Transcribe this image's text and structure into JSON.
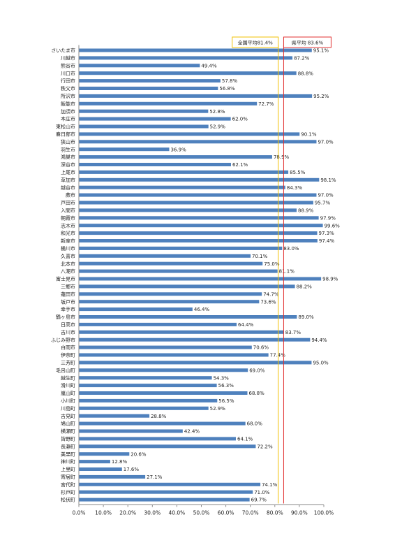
{
  "chart_data": {
    "type": "bar",
    "orientation": "horizontal",
    "unit": "%",
    "xlim": [
      0,
      100
    ],
    "x_ticks": [
      "0.0%",
      "10.0%",
      "20.0%",
      "30.0%",
      "40.0%",
      "50.0%",
      "60.0%",
      "70.0%",
      "80.0%",
      "90.0%",
      "100.0%"
    ],
    "grid": false,
    "colors": {
      "bar": "#4f81bd",
      "national_line": "#f2c100",
      "prefecture_line": "#e03030",
      "axis": "#888888"
    },
    "reference_lines": [
      {
        "label": "全国平均81.4%",
        "value": 81.4,
        "color": "#f2c100"
      },
      {
        "label": "県平均 83.6%",
        "value": 83.6,
        "color": "#e03030"
      }
    ],
    "categories": [
      "さいたま市",
      "川越市",
      "熊谷市",
      "川口市",
      "行田市",
      "秩父市",
      "所沢市",
      "飯能市",
      "加須市",
      "本庄市",
      "東松山市",
      "春日部市",
      "狭山市",
      "羽生市",
      "鴻巣市",
      "深谷市",
      "上尾市",
      "草加市",
      "越谷市",
      "蕨市",
      "戸田市",
      "入間市",
      "朝霞市",
      "志木市",
      "和光市",
      "新座市",
      "桶川市",
      "久喜市",
      "北本市",
      "八潮市",
      "富士見市",
      "三郷市",
      "蓮田市",
      "坂戸市",
      "幸手市",
      "鶴ヶ島市",
      "日高市",
      "吉川市",
      "ふじみ野市",
      "白岡市",
      "伊奈町",
      "三芳町",
      "毛呂山町",
      "越生町",
      "滑川町",
      "嵐山町",
      "小川町",
      "川島町",
      "吉見町",
      "鳩山町",
      "横瀬町",
      "皆野町",
      "長瀞町",
      "美里町",
      "神川町",
      "上里町",
      "寄居町",
      "宮代町",
      "杉戸町",
      "松伏町"
    ],
    "values": [
      95.1,
      87.2,
      49.4,
      88.8,
      57.8,
      56.8,
      95.2,
      72.7,
      52.8,
      62.0,
      52.9,
      90.1,
      97.0,
      36.9,
      78.9,
      62.1,
      85.5,
      98.1,
      84.3,
      97.0,
      95.7,
      88.9,
      97.9,
      99.6,
      97.3,
      97.4,
      83.0,
      70.1,
      75.0,
      81.1,
      98.9,
      88.2,
      74.7,
      73.6,
      46.4,
      89.0,
      64.4,
      83.7,
      94.4,
      70.6,
      77.4,
      95.0,
      69.0,
      54.3,
      56.3,
      68.8,
      56.5,
      52.9,
      28.8,
      68.0,
      42.4,
      64.1,
      72.2,
      20.6,
      12.8,
      17.6,
      27.1,
      74.1,
      71.0,
      69.7
    ],
    "value_labels": [
      "95.1%",
      "87.2%",
      "49.4%",
      "88.8%",
      "57.8%",
      "56.8%",
      "95.2%",
      "72.7%",
      "52.8%",
      "62.0%",
      "52.9%",
      "90.1%",
      "97.0%",
      "36.9%",
      "78.9%",
      "62.1%",
      "85.5%",
      "98.1%",
      "84.3%",
      "97.0%",
      "95.7%",
      "88.9%",
      "97.9%",
      "99.6%",
      "97.3%",
      "97.4%",
      "83.0%",
      "70.1%",
      "75.0%",
      "81.1%",
      "98.9%",
      "88.2%",
      "74.7%",
      "73.6%",
      "46.4%",
      "89.0%",
      "64.4%",
      "83.7%",
      "94.4%",
      "70.6%",
      "77.4%",
      "95.0%",
      "69.0%",
      "54.3%",
      "56.3%",
      "68.8%",
      "56.5%",
      "52.9%",
      "28.8%",
      "68.0%",
      "42.4%",
      "64.1%",
      "72.2%",
      "20.6%",
      "12.8%",
      "17.6%",
      "27.1%",
      "74.1%",
      "71.0%",
      "69.7%"
    ]
  }
}
